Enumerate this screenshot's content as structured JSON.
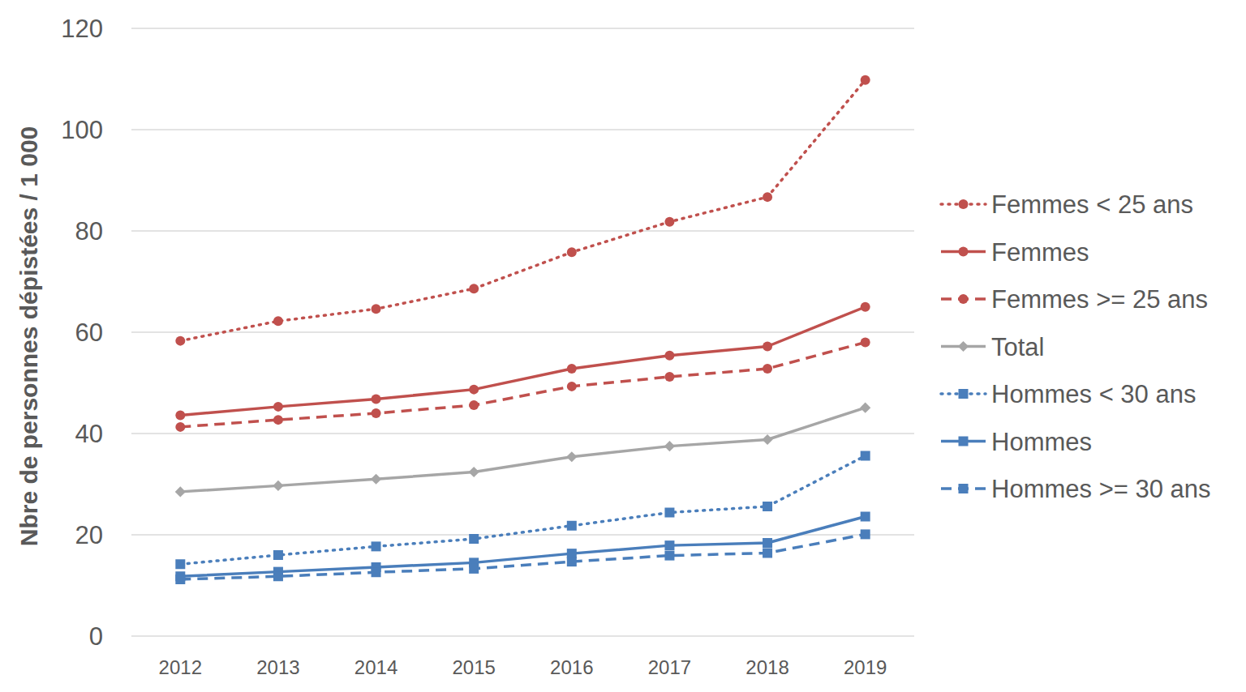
{
  "chart_data": {
    "type": "line",
    "y_label": "Nbre de personnes dépistées / 1 000",
    "categories": [
      "2012",
      "2013",
      "2014",
      "2015",
      "2016",
      "2017",
      "2018",
      "2019"
    ],
    "series": [
      {
        "name": "Femmes < 25 ans",
        "color": "#c0504d",
        "marker": "circle",
        "line_style": "dotted",
        "values": [
          58.3,
          62.2,
          64.6,
          68.6,
          75.8,
          81.8,
          86.7,
          109.8
        ]
      },
      {
        "name": "Femmes",
        "color": "#c0504d",
        "marker": "circle",
        "line_style": "solid",
        "values": [
          43.6,
          45.3,
          46.8,
          48.7,
          52.8,
          55.4,
          57.2,
          65.0
        ]
      },
      {
        "name": "Femmes >= 25 ans",
        "color": "#c0504d",
        "marker": "circle",
        "line_style": "dashed",
        "values": [
          41.3,
          42.7,
          44.0,
          45.6,
          49.3,
          51.2,
          52.8,
          58.0
        ]
      },
      {
        "name": "Total",
        "color": "#a6a6a6",
        "marker": "diamond",
        "line_style": "solid",
        "values": [
          28.5,
          29.7,
          31.0,
          32.4,
          35.4,
          37.5,
          38.8,
          45.1
        ]
      },
      {
        "name": "Hommes < 30 ans",
        "color": "#4a7ebb",
        "marker": "square",
        "line_style": "dotted",
        "values": [
          14.2,
          16.0,
          17.7,
          19.2,
          21.8,
          24.4,
          25.6,
          35.6
        ]
      },
      {
        "name": "Hommes",
        "color": "#4a7ebb",
        "marker": "square",
        "line_style": "solid",
        "values": [
          11.8,
          12.7,
          13.6,
          14.5,
          16.3,
          17.9,
          18.4,
          23.6
        ]
      },
      {
        "name": "Hommes >= 30 ans",
        "color": "#4a7ebb",
        "marker": "square",
        "line_style": "dashed",
        "values": [
          11.2,
          11.8,
          12.6,
          13.3,
          14.7,
          15.9,
          16.4,
          20.1
        ]
      }
    ],
    "ylim": [
      0,
      120
    ],
    "yticks": [
      0,
      20,
      40,
      60,
      80,
      100,
      120
    ],
    "grid": true,
    "legend": "right"
  }
}
